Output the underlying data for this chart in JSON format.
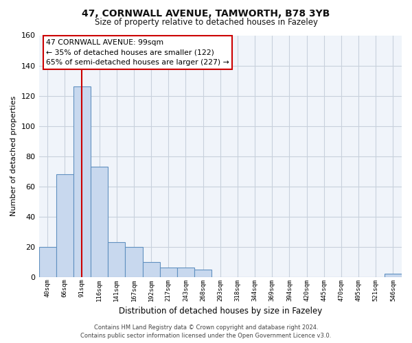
{
  "title_line1": "47, CORNWALL AVENUE, TAMWORTH, B78 3YB",
  "title_line2": "Size of property relative to detached houses in Fazeley",
  "xlabel": "Distribution of detached houses by size in Fazeley",
  "ylabel": "Number of detached properties",
  "bin_labels": [
    "40sqm",
    "66sqm",
    "91sqm",
    "116sqm",
    "141sqm",
    "167sqm",
    "192sqm",
    "217sqm",
    "243sqm",
    "268sqm",
    "293sqm",
    "318sqm",
    "344sqm",
    "369sqm",
    "394sqm",
    "420sqm",
    "445sqm",
    "470sqm",
    "495sqm",
    "521sqm",
    "546sqm"
  ],
  "bar_values": [
    20,
    68,
    126,
    73,
    23,
    20,
    10,
    6,
    6,
    5,
    0,
    0,
    0,
    0,
    0,
    0,
    0,
    0,
    0,
    0,
    2
  ],
  "bar_color": "#c8d8ee",
  "bar_edge_color": "#6090c0",
  "grid_color": "#c8d0dc",
  "background_color": "#ffffff",
  "plot_bg_color": "#f0f4fa",
  "vline_x": 2.0,
  "vline_color": "#cc0000",
  "ylim_max": 160,
  "yticks": [
    0,
    20,
    40,
    60,
    80,
    100,
    120,
    140,
    160
  ],
  "annotation_line1": "47 CORNWALL AVENUE: 99sqm",
  "annotation_line2": "← 35% of detached houses are smaller (122)",
  "annotation_line3": "65% of semi-detached houses are larger (227) →",
  "annotation_box_edge": "#cc0000",
  "footer_line1": "Contains HM Land Registry data © Crown copyright and database right 2024.",
  "footer_line2": "Contains public sector information licensed under the Open Government Licence v3.0."
}
